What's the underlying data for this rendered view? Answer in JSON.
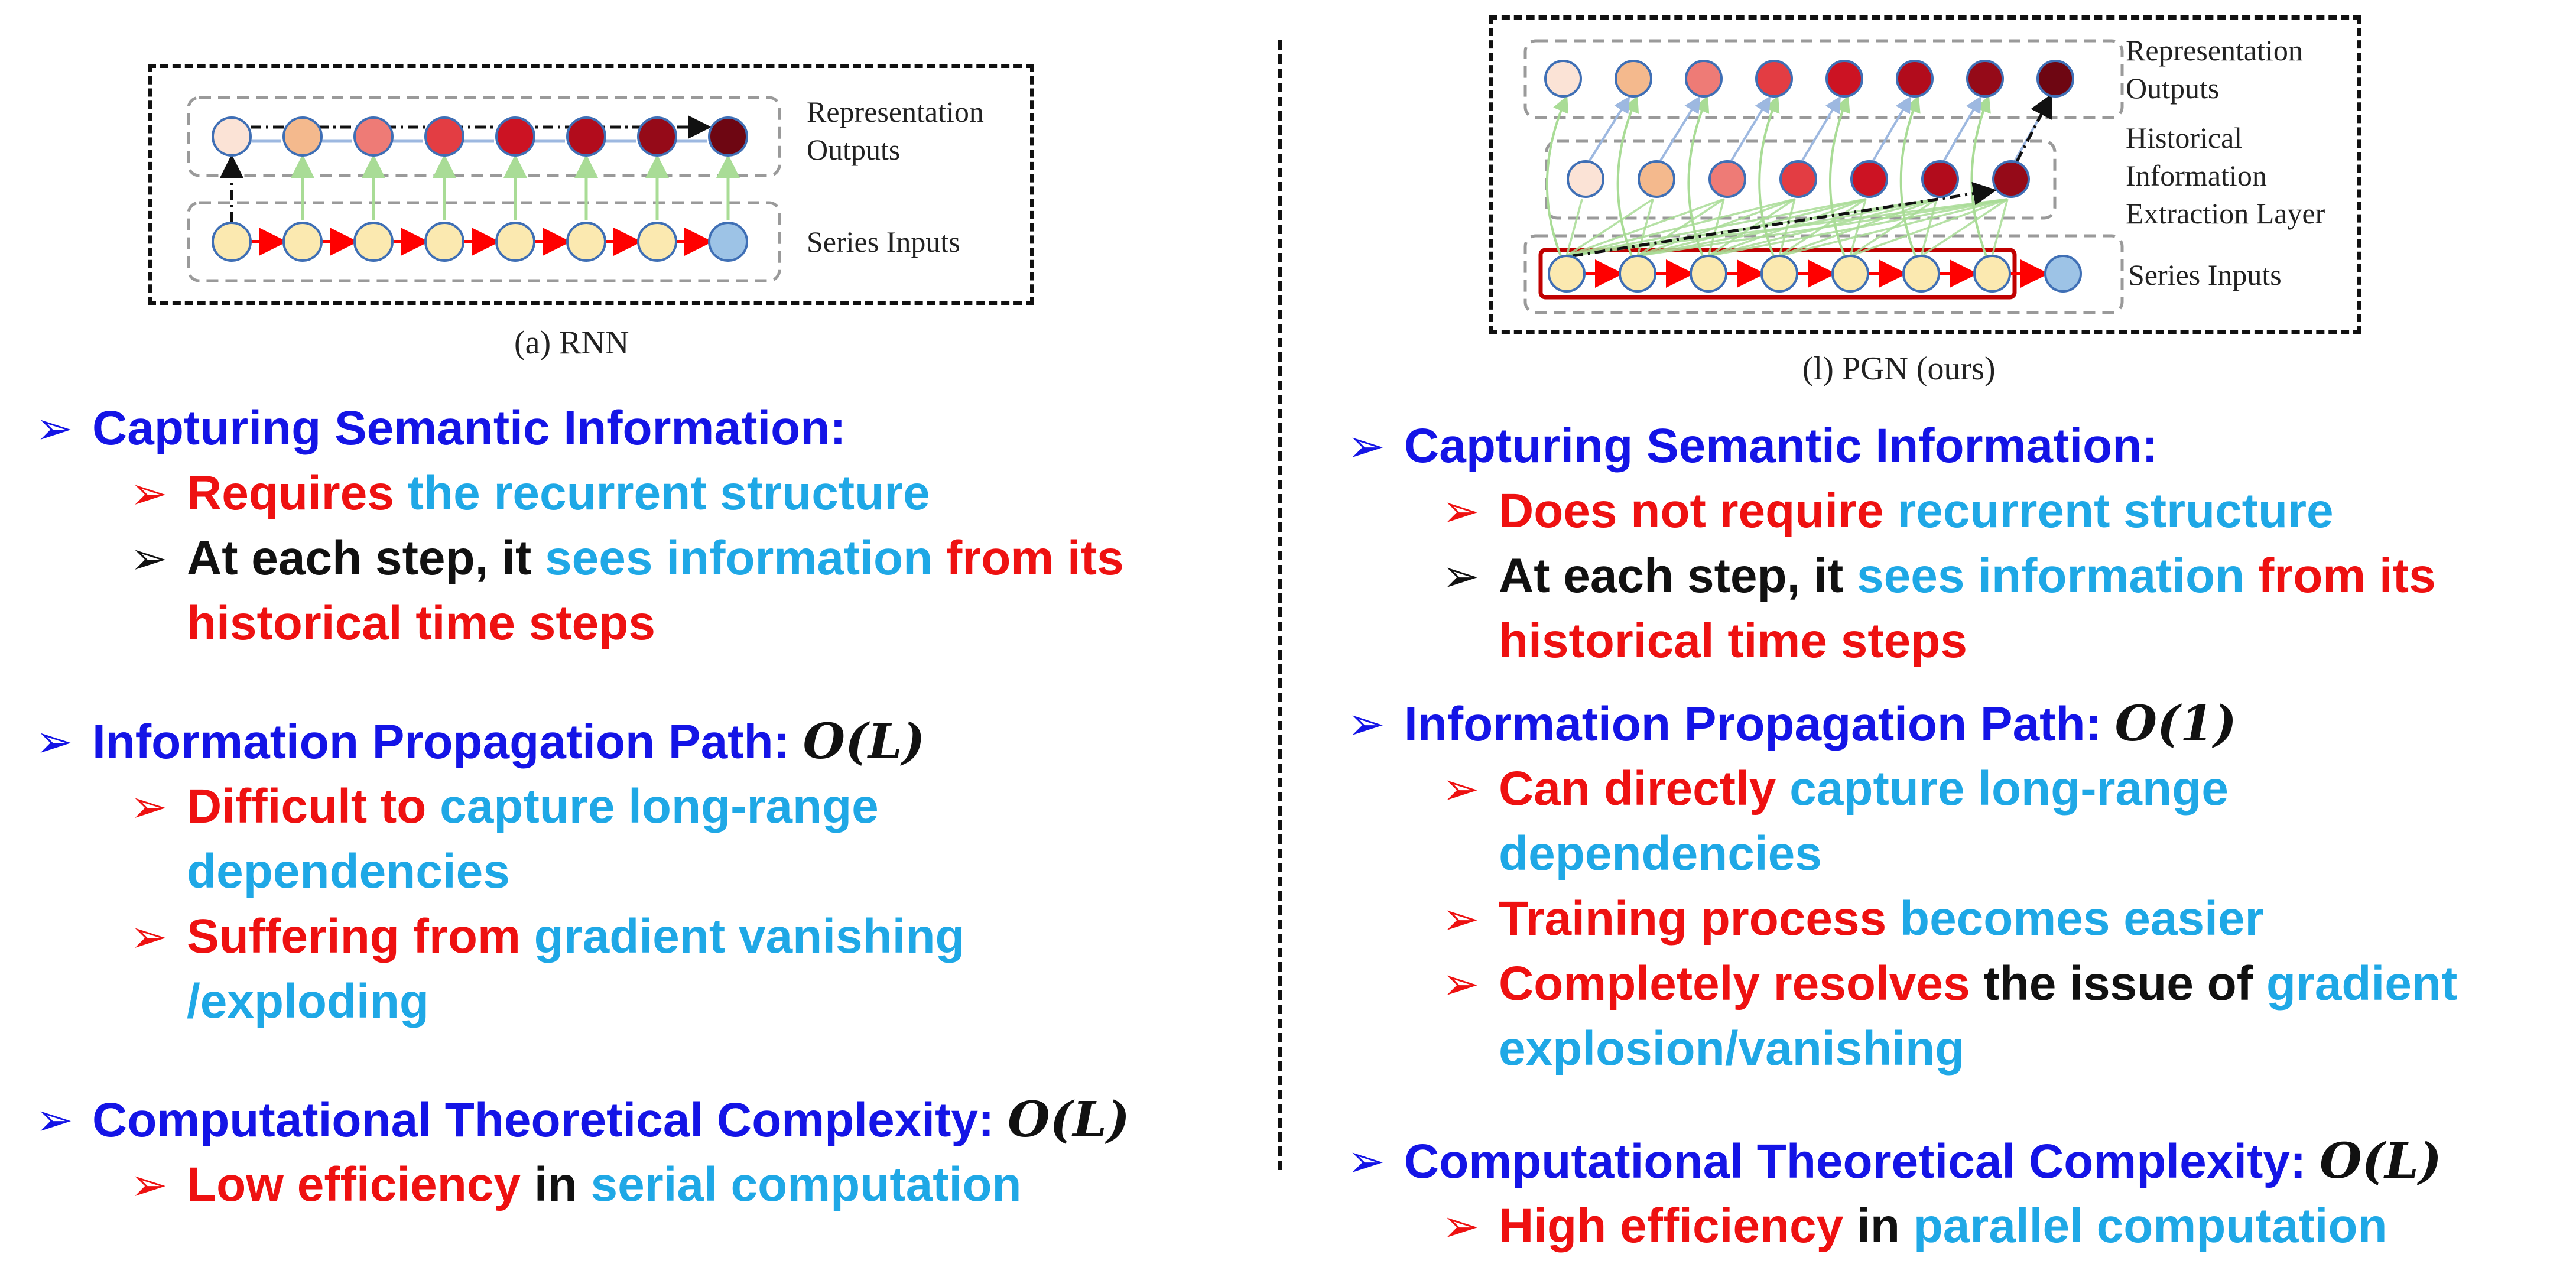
{
  "left": {
    "figure_label": "(a) RNN",
    "fig_text": {
      "outputs": [
        "Representation",
        "Outputs"
      ],
      "inputs": "Series Inputs"
    },
    "sections": [
      {
        "heading": "Capturing Semantic Information:",
        "items": [
          {
            "arrow_color": "red",
            "segments": [
              {
                "text": "Requires ",
                "color": "red"
              },
              {
                "text": "the recurrent structure",
                "color": "cyan"
              }
            ]
          },
          {
            "arrow_color": "black",
            "segments": [
              {
                "text": "At each step, it ",
                "color": "black"
              },
              {
                "text": "sees information ",
                "color": "cyan"
              },
              {
                "text": "from its",
                "color": "red"
              }
            ],
            "cont": [
              {
                "text": "historical time steps",
                "color": "red"
              }
            ]
          }
        ]
      },
      {
        "heading": "Information Propagation Path: ",
        "math": "O(L)",
        "items": [
          {
            "arrow_color": "red",
            "segments": [
              {
                "text": "Difficult to ",
                "color": "red"
              },
              {
                "text": "capture long-range",
                "color": "cyan"
              }
            ],
            "cont": [
              {
                "text": "dependencies",
                "color": "cyan"
              }
            ]
          },
          {
            "arrow_color": "red",
            "segments": [
              {
                "text": "Suffering from ",
                "color": "red"
              },
              {
                "text": "gradient vanishing",
                "color": "cyan"
              }
            ],
            "cont": [
              {
                "text": "/exploding",
                "color": "cyan"
              }
            ]
          }
        ]
      },
      {
        "heading": "Computational Theoretical Complexity: ",
        "math": "O(L)",
        "items": [
          {
            "arrow_color": "red",
            "segments": [
              {
                "text": "Low efficiency ",
                "color": "red"
              },
              {
                "text": "in ",
                "color": "black"
              },
              {
                "text": "serial computation",
                "color": "cyan"
              }
            ]
          }
        ]
      }
    ]
  },
  "right": {
    "figure_label": "(l) PGN (ours)",
    "fig_text": {
      "outputs": [
        "Representation",
        "Outputs"
      ],
      "hidden": [
        "Historical",
        "Information",
        "Extraction Layer"
      ],
      "inputs": "Series Inputs"
    },
    "sections": [
      {
        "heading": "Capturing Semantic Information:",
        "items": [
          {
            "arrow_color": "red",
            "segments": [
              {
                "text": "Does not require ",
                "color": "red"
              },
              {
                "text": "recurrent structure",
                "color": "cyan"
              }
            ]
          },
          {
            "arrow_color": "black",
            "segments": [
              {
                "text": "At each step, it ",
                "color": "black"
              },
              {
                "text": "sees information ",
                "color": "cyan"
              },
              {
                "text": "from its",
                "color": "red"
              }
            ],
            "cont": [
              {
                "text": "historical time steps",
                "color": "red"
              }
            ]
          }
        ]
      },
      {
        "heading": "Information Propagation Path: ",
        "math": "O(1)",
        "items": [
          {
            "arrow_color": "red",
            "segments": [
              {
                "text": "Can directly ",
                "color": "red"
              },
              {
                "text": "capture long-range",
                "color": "cyan"
              }
            ],
            "cont": [
              {
                "text": "dependencies",
                "color": "cyan"
              }
            ]
          },
          {
            "arrow_color": "red",
            "segments": [
              {
                "text": "Training process ",
                "color": "red"
              },
              {
                "text": "becomes easier",
                "color": "cyan"
              }
            ]
          },
          {
            "arrow_color": "red",
            "segments": [
              {
                "text": "Completely resolves ",
                "color": "red"
              },
              {
                "text": "the issue of ",
                "color": "black"
              },
              {
                "text": "gradient",
                "color": "cyan"
              }
            ],
            "cont": [
              {
                "text": "explosion/vanishing",
                "color": "cyan"
              }
            ]
          }
        ]
      },
      {
        "heading": "Computational Theoretical Complexity: ",
        "math": "O(L)",
        "items": [
          {
            "arrow_color": "red",
            "segments": [
              {
                "text": "High efficiency ",
                "color": "red"
              },
              {
                "text": "in ",
                "color": "black"
              },
              {
                "text": "parallel computation",
                "color": "cyan"
              }
            ]
          }
        ]
      }
    ]
  },
  "bullet_glyph": "➢",
  "colors": {
    "heading": "#1414e6",
    "red": "#ee1111",
    "cyan": "#1fa8e6",
    "black": "#111111",
    "input_node": "#fbe9b0",
    "last_input_node": "#9dc3e6",
    "node_stroke": "#3f6fb5",
    "recurrent_arrow": "#ff0000",
    "skip_arrow": "#a9dc96",
    "output_arrow": "#9db8e0"
  },
  "output_node_colors": [
    "#fbe3d6",
    "#f4b98d",
    "#ee7b76",
    "#e33d43",
    "#cc1323",
    "#b20c1c",
    "#950a18",
    "#6e0612"
  ]
}
